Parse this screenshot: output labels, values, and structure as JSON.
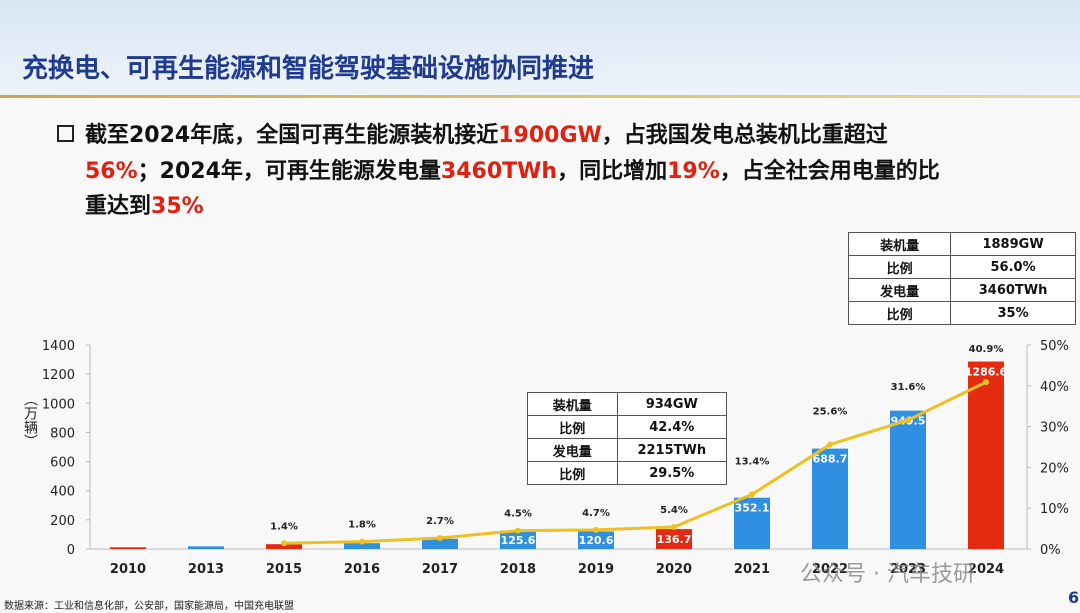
{
  "header": {
    "title": "充换电、可再生能源和智能驾驶基础设施协同推进"
  },
  "paragraph": {
    "lines": [
      [
        {
          "text": "截至2024年底，全国可再生能源装机接近",
          "highlight": false
        },
        {
          "text": "1900GW",
          "highlight": true
        },
        {
          "text": "，占我国发电总装机比重超过",
          "highlight": false
        }
      ],
      [
        {
          "text": "56%",
          "highlight": true
        },
        {
          "text": "；2024年，可再生能源发电量",
          "highlight": false
        },
        {
          "text": "3460TWh",
          "highlight": true
        },
        {
          "text": "，同比增加",
          "highlight": false
        },
        {
          "text": "19%",
          "highlight": true
        },
        {
          "text": "，占全社会用电量的比",
          "highlight": false
        }
      ],
      [
        {
          "text": "重达到",
          "highlight": false
        },
        {
          "text": "35%",
          "highlight": true
        }
      ]
    ],
    "highlight_color": "#e02010"
  },
  "table_2024": {
    "rows": [
      [
        "装机量",
        "1889GW"
      ],
      [
        "比例",
        "56.0%"
      ],
      [
        "发电量",
        "3460TWh"
      ],
      [
        "比例",
        "35%"
      ]
    ]
  },
  "table_2020": {
    "rows": [
      [
        "装机量",
        "934GW"
      ],
      [
        "比例",
        "42.4%"
      ],
      [
        "发电量",
        "2215TWh"
      ],
      [
        "比例",
        "29.5%"
      ]
    ]
  },
  "chart_data": {
    "type": "bar",
    "y_label": "（万辆）",
    "categories": [
      "2010",
      "2013",
      "2015",
      "2016",
      "2017",
      "2018",
      "2019",
      "2020",
      "2021",
      "2022",
      "2023",
      "2024"
    ],
    "series": [
      {
        "type": "bar",
        "colors": [
          "#e52a12",
          "#2f8fe0",
          "#e52a12",
          "#2f8fe0",
          "#2f8fe0",
          "#2f8fe0",
          "#2f8fe0",
          "#e52a12",
          "#2f8fe0",
          "#2f8fe0",
          "#2f8fe0",
          "#e52a12"
        ],
        "values": [
          12,
          18,
          33,
          40,
          70,
          125.6,
          120.6,
          136.7,
          352.1,
          688.7,
          949.5,
          1286.6
        ],
        "value_labels": [
          null,
          null,
          null,
          null,
          null,
          "125.6",
          "120.6",
          "136.7",
          "352.1",
          "688.7",
          "949.5",
          "1286.6"
        ]
      },
      {
        "type": "line",
        "axis": "y2",
        "color": "#eec020",
        "values": [
          null,
          null,
          1.4,
          1.8,
          2.7,
          4.5,
          4.7,
          5.4,
          13.4,
          25.6,
          31.6,
          40.9
        ],
        "value_labels": [
          null,
          null,
          "1.4%",
          "1.8%",
          "2.7%",
          "4.5%",
          "4.7%",
          "5.4%",
          "13.4%",
          "25.6%",
          "31.6%",
          "40.9%"
        ]
      }
    ],
    "ylim": [
      0,
      1400
    ],
    "yticks": [
      0,
      200,
      400,
      600,
      800,
      1000,
      1200,
      1400
    ],
    "y2lim": [
      0,
      50
    ],
    "y2ticks": [
      {
        "value": 0,
        "label": "0%"
      },
      {
        "value": 10,
        "label": "10%"
      },
      {
        "value": 20,
        "label": "20%"
      },
      {
        "value": 30,
        "label": "30%"
      },
      {
        "value": 40,
        "label": "40%"
      },
      {
        "value": 50,
        "label": "50%"
      }
    ]
  },
  "source": "数据来源：工业和信息化部，公安部，国家能源局，中国充电联盟",
  "page_number": "6",
  "watermark": "公众号 · 汽车技研"
}
